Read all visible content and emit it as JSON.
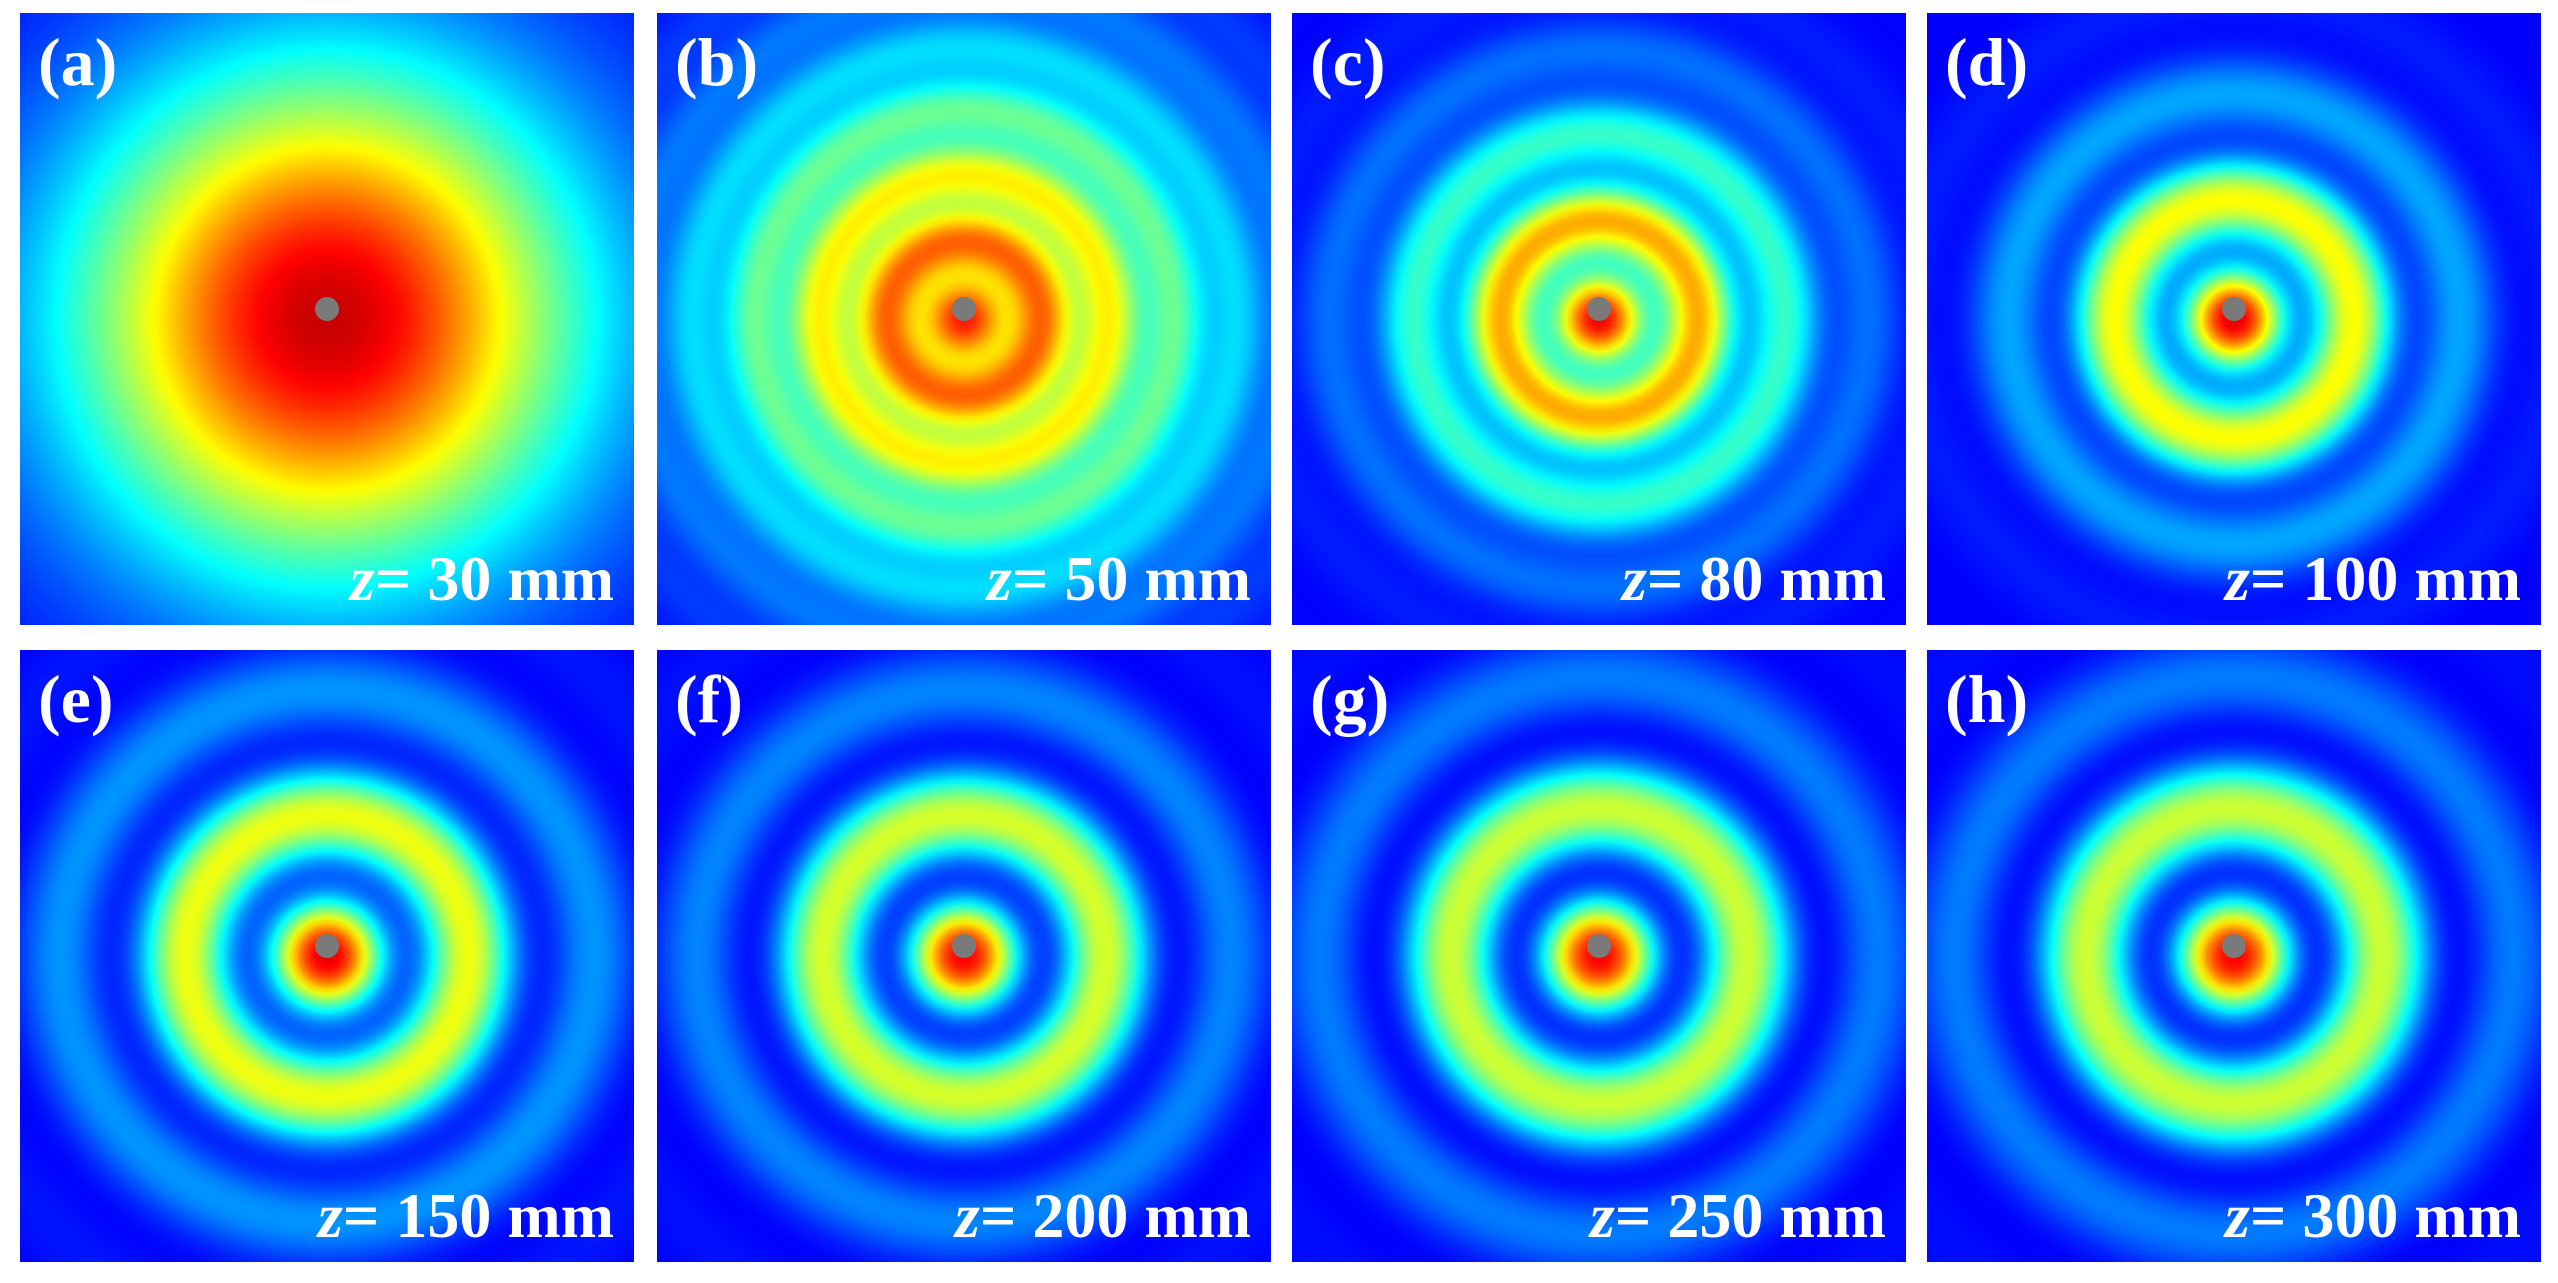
{
  "panels": [
    {
      "label": "(a)",
      "z_symbol": "z",
      "z_text": "= 30 mm"
    },
    {
      "label": "(b)",
      "z_symbol": "z",
      "z_text": "= 50 mm"
    },
    {
      "label": "(c)",
      "z_symbol": "z",
      "z_text": "= 80 mm"
    },
    {
      "label": "(d)",
      "z_symbol": "z",
      "z_text": "= 100 mm"
    },
    {
      "label": "(e)",
      "z_symbol": "z",
      "z_text": "= 150 mm"
    },
    {
      "label": "(f)",
      "z_symbol": "z",
      "z_text": "= 200 mm"
    },
    {
      "label": "(g)",
      "z_symbol": "z",
      "z_text": "= 250 mm"
    },
    {
      "label": "(h)",
      "z_symbol": "z",
      "z_text": "= 300 mm"
    }
  ]
}
